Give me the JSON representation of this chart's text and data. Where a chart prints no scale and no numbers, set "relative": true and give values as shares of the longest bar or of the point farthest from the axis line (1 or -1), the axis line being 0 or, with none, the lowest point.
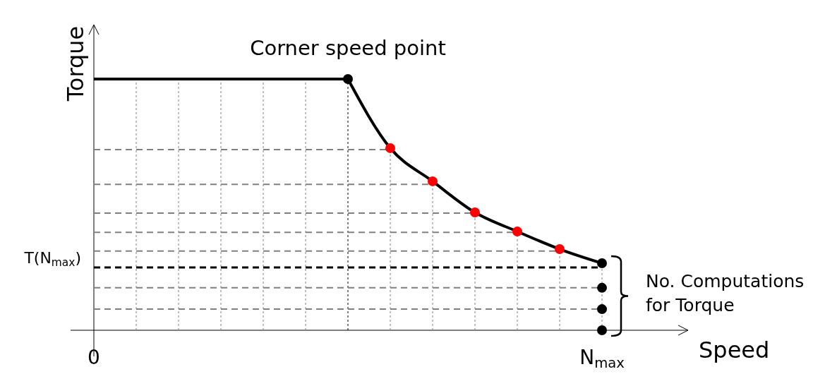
{
  "chart_data": {
    "type": "line",
    "relative": true,
    "xlabel": "Speed",
    "ylabel": "Torque",
    "grid": "x",
    "categories": [
      "0",
      null,
      null,
      null,
      null,
      null,
      null,
      null,
      null,
      null,
      null,
      null,
      "N$_{max}$"
    ],
    "series": [
      {
        "color": "#000000",
        "marker": "none",
        "values": [
          1,
          1,
          1,
          1,
          1,
          1,
          1,
          0.725,
          0.593,
          0.469,
          0.393,
          0.323,
          0.267
        ]
      },
      {
        "type": "scatter",
        "color": "#000000",
        "marker": "circle",
        "values": [
          null,
          null,
          null,
          null,
          null,
          null,
          1,
          null,
          null,
          null,
          null,
          null,
          null
        ]
      },
      {
        "type": "scatter",
        "color": "#ff0000",
        "marker": "circle",
        "values": [
          null,
          null,
          null,
          null,
          null,
          null,
          null,
          0.725,
          0.593,
          0.469,
          0.393,
          0.323,
          null
        ]
      },
      {
        "type": "scatter",
        "color": "#000000",
        "marker": "circle",
        "values": [
          null,
          null,
          null,
          null,
          null,
          null,
          null,
          null,
          null,
          null,
          null,
          null,
          0.267
        ]
      },
      {
        "type": "scatter",
        "color": "#000000",
        "marker": "circle",
        "values": [
          null,
          null,
          null,
          null,
          null,
          null,
          null,
          null,
          null,
          null,
          null,
          null,
          0.169
        ]
      },
      {
        "type": "scatter",
        "color": "#000000",
        "marker": "circle",
        "values": [
          null,
          null,
          null,
          null,
          null,
          null,
          null,
          null,
          null,
          null,
          null,
          null,
          0.084
        ]
      },
      {
        "type": "scatter",
        "color": "#000000",
        "marker": "circle",
        "values": [
          null,
          null,
          null,
          null,
          null,
          null,
          null,
          null,
          null,
          null,
          null,
          null,
          0
        ]
      }
    ],
    "ref_lines": [
      {
        "axis": "y",
        "value": 0.25,
        "label": "T(N$_{max}$)",
        "color": "#000000",
        "line_style": "dashed"
      },
      {
        "axis": "y",
        "value": 0.719,
        "color": "#808080",
        "line_style": "dashed"
      },
      {
        "axis": "y",
        "value": 0.581,
        "color": "#808080",
        "line_style": "dashed"
      },
      {
        "axis": "y",
        "value": 0.466,
        "color": "#808080",
        "line_style": "dashed"
      },
      {
        "axis": "y",
        "value": 0.39,
        "color": "#808080",
        "line_style": "dashed"
      },
      {
        "axis": "y",
        "value": 0.315,
        "color": "#808080",
        "line_style": "dashed"
      },
      {
        "axis": "y",
        "value": 0.169,
        "color": "#808080",
        "line_style": "dashed"
      },
      {
        "axis": "y",
        "value": 0.084,
        "color": "#808080",
        "line_style": "dashed"
      }
    ],
    "annotations": [
      {
        "text": "Corner speed point",
        "y": 1
      },
      "No. Computations for Torque"
    ]
  }
}
